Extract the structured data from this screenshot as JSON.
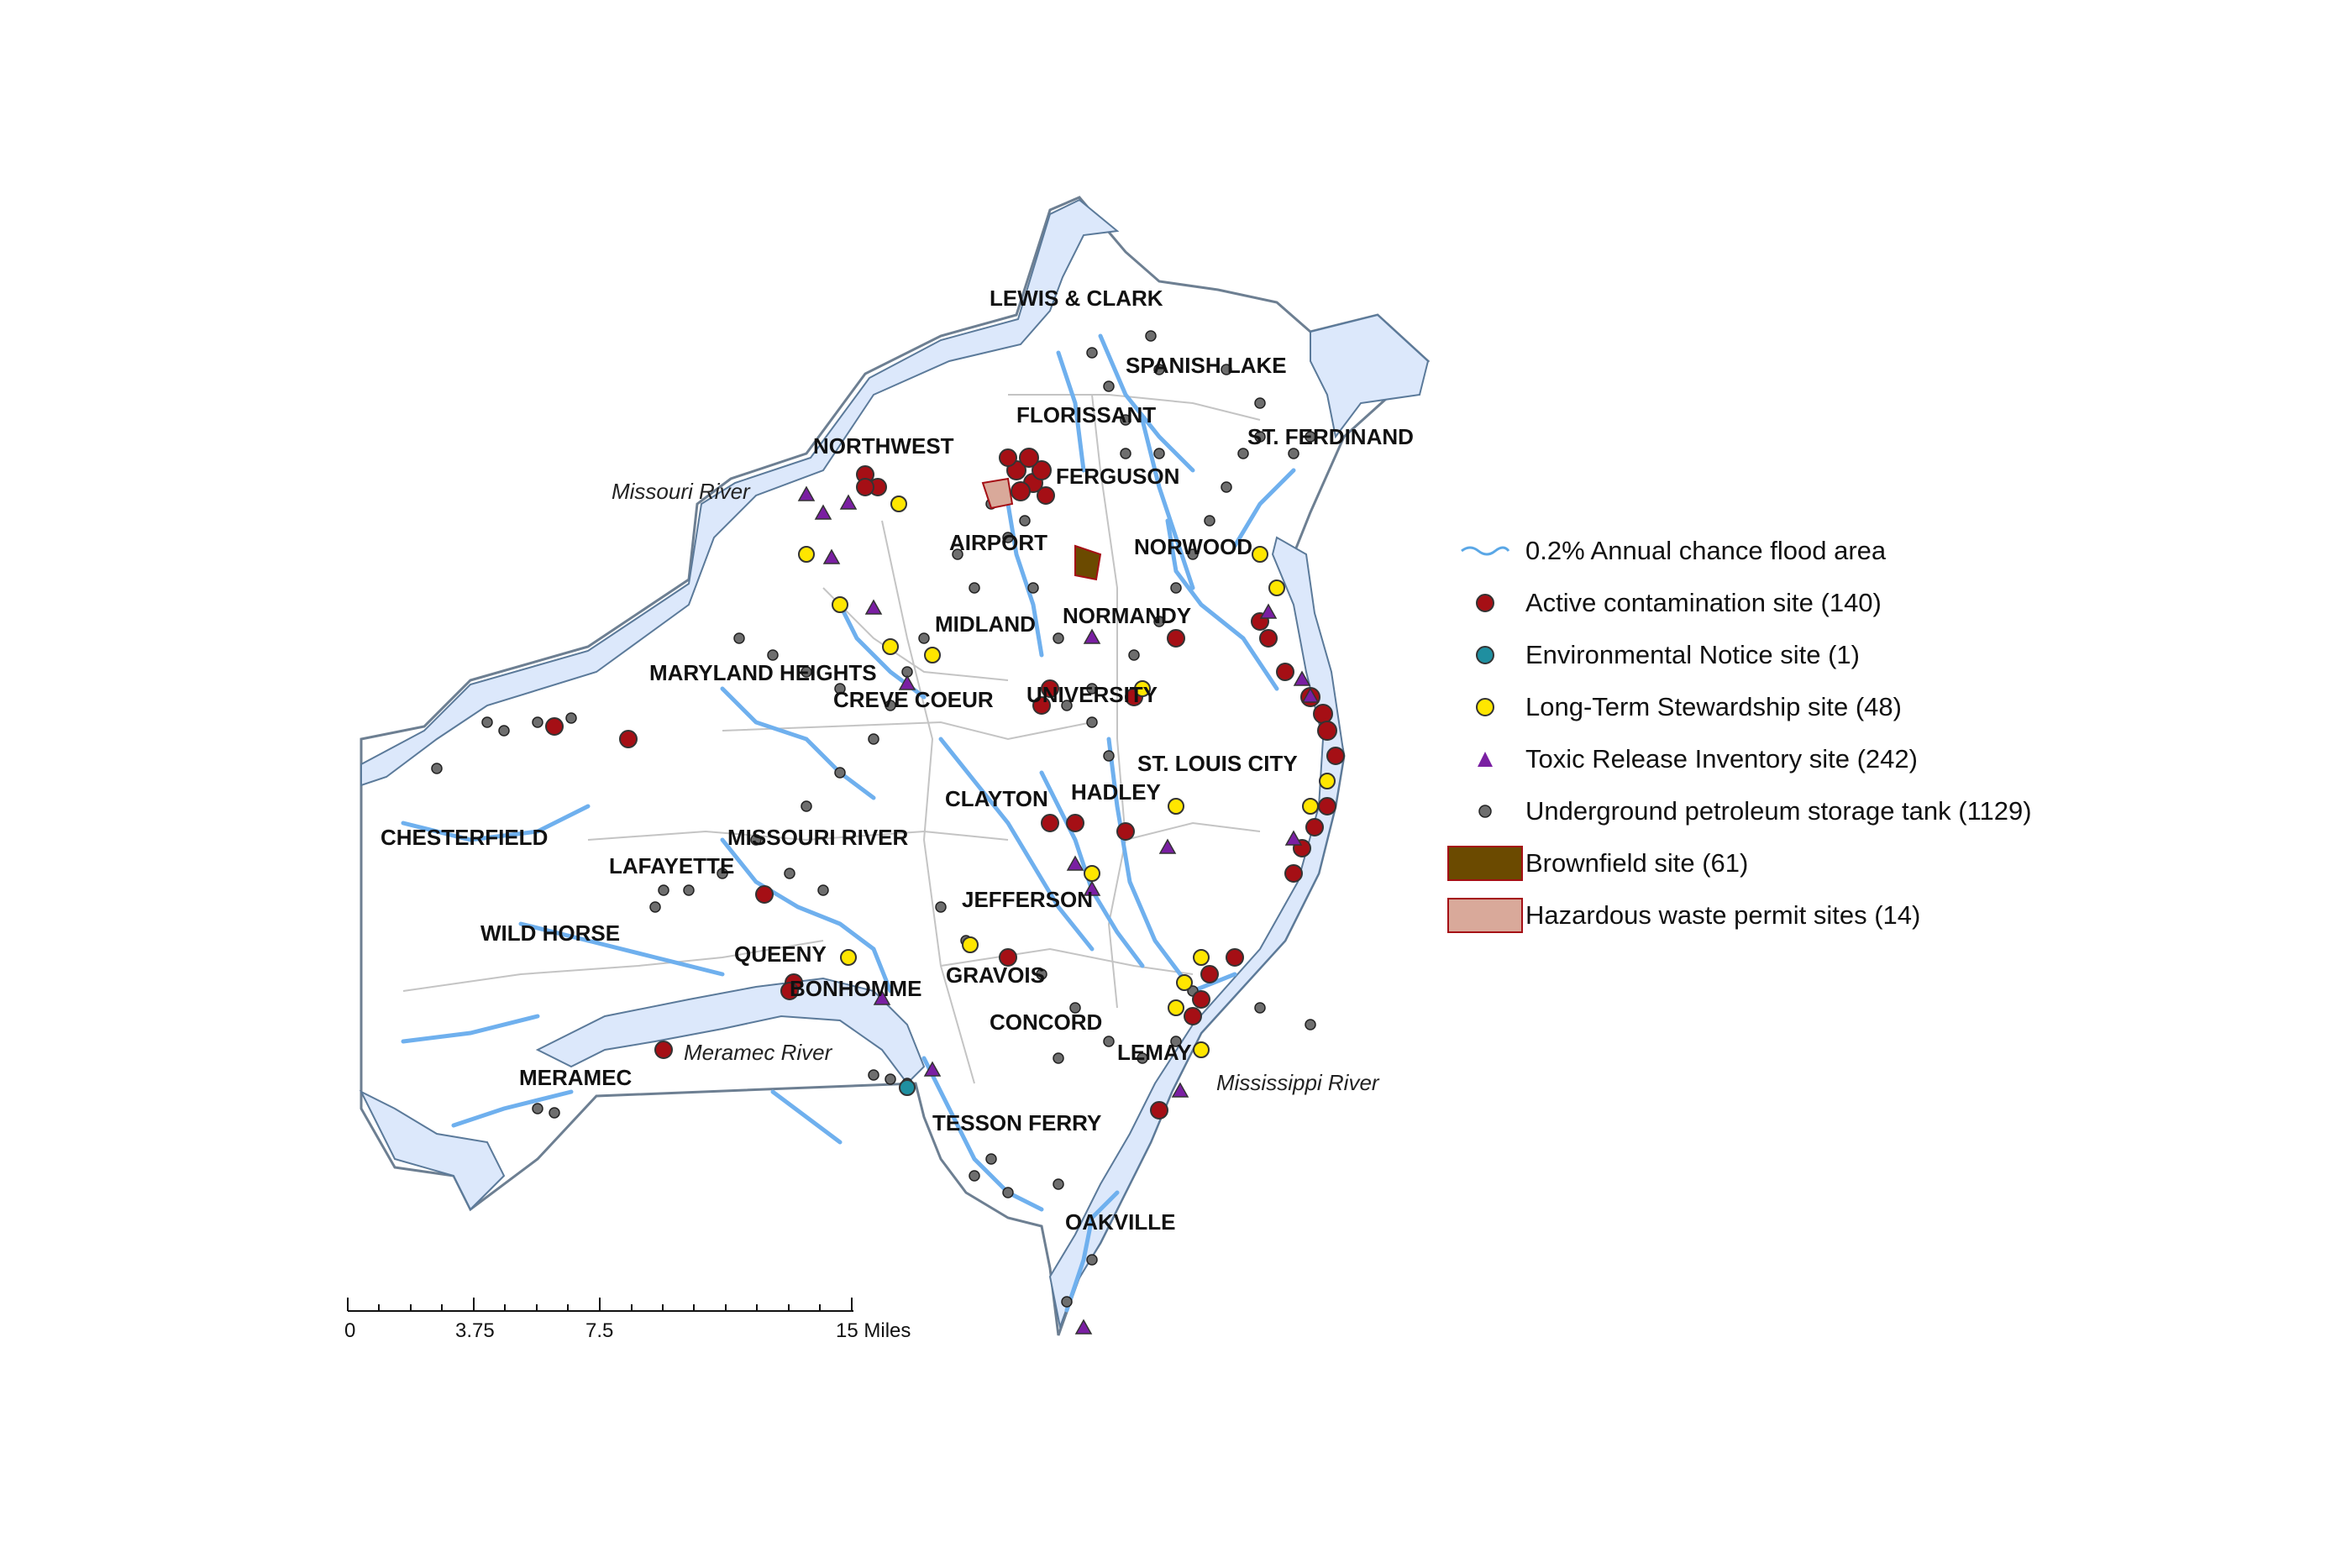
{
  "regions": [
    "LEWIS & CLARK",
    "SPANISH LAKE",
    "FLORISSANT",
    "ST. FERDINAND",
    "NORTHWEST",
    "FERGUSON",
    "AIRPORT",
    "NORWOOD",
    "MIDLAND",
    "NORMANDY",
    "MARYLAND HEIGHTS",
    "CREVE COEUR",
    "UNIVERSITY",
    "ST. LOUIS CITY",
    "CLAYTON",
    "HADLEY",
    "CHESTERFIELD",
    "MISSOURI RIVER",
    "LAFAYETTE",
    "WILD HORSE",
    "JEFFERSON",
    "QUEENY",
    "GRAVOIS",
    "BONHOMME",
    "CONCORD",
    "LEMAY",
    "MERAMEC",
    "TESSON FERRY",
    "OAKVILLE"
  ],
  "rivers": [
    "Missouri River",
    "Meramec River",
    "Mississippi River"
  ],
  "legend": [
    {
      "symbol": "flood-line",
      "label": "0.2% Annual chance flood area",
      "color": "#5aa7e6"
    },
    {
      "symbol": "circle",
      "label": "Active contamination site (140)",
      "color": "#a50f15"
    },
    {
      "symbol": "circle",
      "label": "Environmental Notice site (1)",
      "color": "#1f8fa0"
    },
    {
      "symbol": "circle",
      "label": "Long-Term Stewardship site (48)",
      "color": "#ffe600"
    },
    {
      "symbol": "triangle",
      "label": "Toxic Release Inventory site (242)",
      "color": "#7a1fa2"
    },
    {
      "symbol": "small-circle",
      "label": "Underground petroleum storage tank (1129)",
      "color": "#6e6e6e"
    },
    {
      "symbol": "rect",
      "label": "Brownfield site (61)",
      "color": "#6b4a00"
    },
    {
      "symbol": "rect",
      "label": "Hazardous waste permit sites (14)",
      "color": "#d9a99a"
    }
  ],
  "scale": {
    "ticks": [
      "0",
      "3.75",
      "7.5",
      "15 Miles"
    ]
  },
  "colors": {
    "flood_fill": "#dce8fb",
    "flood_edge": "#5b7a9a",
    "stream": "#6fb0ee",
    "boundary": "#bdbdbd"
  }
}
